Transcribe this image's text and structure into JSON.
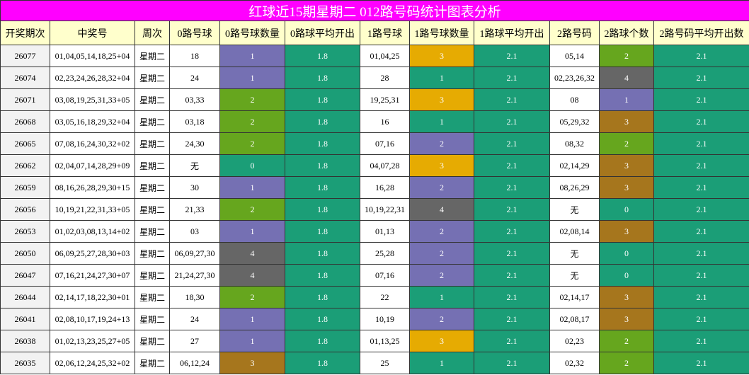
{
  "title": "红球近15期星期二 012路号码统计图表分析",
  "table": {
    "header": [
      "开奖期次",
      "中奖号",
      "周次",
      "0路号球",
      "0路号球数量",
      "0路球平均开出",
      "1路号球",
      "1路号球数量",
      "1路球平均开出",
      "2路号码",
      "2路球个数",
      "2路号码平均开出数"
    ],
    "rows": [
      [
        "26077",
        "01,04,05,14,18,25+04",
        "星期二",
        "18",
        "1",
        "1.8",
        "01,04,25",
        "3",
        "2.1",
        "05,14",
        "2",
        "2.1"
      ],
      [
        "26074",
        "02,23,24,26,28,32+04",
        "星期二",
        "24",
        "1",
        "1.8",
        "28",
        "1",
        "2.1",
        "02,23,26,32",
        "4",
        "2.1"
      ],
      [
        "26071",
        "03,08,19,25,31,33+05",
        "星期二",
        "03,33",
        "2",
        "1.8",
        "19,25,31",
        "3",
        "2.1",
        "08",
        "1",
        "2.1"
      ],
      [
        "26068",
        "03,05,16,18,29,32+04",
        "星期二",
        "03,18",
        "2",
        "1.8",
        "16",
        "1",
        "2.1",
        "05,29,32",
        "3",
        "2.1"
      ],
      [
        "26065",
        "07,08,16,24,30,32+02",
        "星期二",
        "24,30",
        "2",
        "1.8",
        "07,16",
        "2",
        "2.1",
        "08,32",
        "2",
        "2.1"
      ],
      [
        "26062",
        "02,04,07,14,28,29+09",
        "星期二",
        "无",
        "0",
        "1.8",
        "04,07,28",
        "3",
        "2.1",
        "02,14,29",
        "3",
        "2.1"
      ],
      [
        "26059",
        "08,16,26,28,29,30+15",
        "星期二",
        "30",
        "1",
        "1.8",
        "16,28",
        "2",
        "2.1",
        "08,26,29",
        "3",
        "2.1"
      ],
      [
        "26056",
        "10,19,21,22,31,33+05",
        "星期二",
        "21,33",
        "2",
        "1.8",
        "10,19,22,31",
        "4",
        "2.1",
        "无",
        "0",
        "2.1"
      ],
      [
        "26053",
        "01,02,03,08,13,14+02",
        "星期二",
        "03",
        "1",
        "1.8",
        "01,13",
        "2",
        "2.1",
        "02,08,14",
        "3",
        "2.1"
      ],
      [
        "26050",
        "06,09,25,27,28,30+03",
        "星期二",
        "06,09,27,30",
        "4",
        "1.8",
        "25,28",
        "2",
        "2.1",
        "无",
        "0",
        "2.1"
      ],
      [
        "26047",
        "07,16,21,24,27,30+07",
        "星期二",
        "21,24,27,30",
        "4",
        "1.8",
        "07,16",
        "2",
        "2.1",
        "无",
        "0",
        "2.1"
      ],
      [
        "26044",
        "02,14,17,18,22,30+01",
        "星期二",
        "18,30",
        "2",
        "1.8",
        "22",
        "1",
        "2.1",
        "02,14,17",
        "3",
        "2.1"
      ],
      [
        "26041",
        "02,08,10,17,19,24+13",
        "星期二",
        "24",
        "1",
        "1.8",
        "10,19",
        "2",
        "2.1",
        "02,08,17",
        "3",
        "2.1"
      ],
      [
        "26038",
        "01,02,13,23,25,27+05",
        "星期二",
        "27",
        "1",
        "1.8",
        "01,13,25",
        "3",
        "2.1",
        "02,23",
        "2",
        "2.1"
      ],
      [
        "26035",
        "02,06,12,24,25,32+02",
        "星期二",
        "06,12,24",
        "3",
        "1.8",
        "25",
        "1",
        "2.1",
        "02,32",
        "2",
        "2.1"
      ]
    ],
    "count_colors": {
      "4": {
        "0": "#1b9e77",
        "1": "#7570b3",
        "2": "#66a61e",
        "3": "#a6761d",
        "4": "#666666"
      },
      "7": {
        "1": "#1b9e77",
        "2": "#7570b3",
        "3": "#e6ab02",
        "4": "#666666"
      },
      "10": {
        "0": "#1b9e77",
        "1": "#7570b3",
        "2": "#66a61e",
        "3": "#a6761d",
        "4": "#666666"
      }
    },
    "avg_color": "#1b9e77"
  }
}
